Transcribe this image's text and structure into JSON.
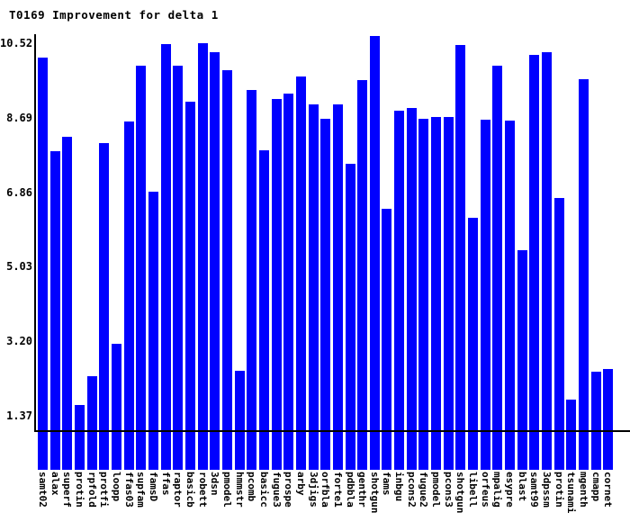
{
  "title": "T0169 Improvement for delta 1",
  "colors": {
    "bar": "#0000ff",
    "axis": "#000000",
    "text": "#000000",
    "background": "#ffffff"
  },
  "chart_data": {
    "type": "bar",
    "title": "T0169 Improvement for delta 1",
    "xlabel": "",
    "ylabel": "",
    "grid": false,
    "legend": false,
    "x_tick_rotation_deg": 90,
    "ylim": [
      0,
      10.75
    ],
    "yticks": [
      10.52,
      8.69,
      6.86,
      5.03,
      3.2,
      1.37
    ],
    "ytick_labels": [
      "10.52",
      "8.69",
      "6.86",
      "5.03",
      "3.20",
      "1.37"
    ],
    "baseline_value": 1.0,
    "categories": [
      "samt02",
      "alax",
      "superf",
      "protin",
      "rpfold",
      "protfi",
      "loopp",
      "ffas03",
      "supfam",
      "famsD",
      "ffas",
      "raptor",
      "basicb",
      "robett",
      "3dsn",
      "pmodel",
      "hmmstr",
      "pcomb",
      "basicc",
      "fugue3",
      "prospe",
      "arby",
      "3djigs",
      "orfbla",
      "forte1",
      "pdbbla",
      "genthr",
      "shotgun",
      "fams",
      "inbgu",
      "pcons2",
      "fugue2",
      "pmodel",
      "pcons3",
      "shotgun",
      "libell",
      "orfeus",
      "mpalig",
      "esypre",
      "blast",
      "samt99",
      "3dpssm",
      "protin",
      "tsunami",
      "mgenth",
      "cmapp",
      "cornet"
    ],
    "values": [
      10.17,
      7.87,
      8.22,
      1.64,
      2.34,
      8.07,
      3.14,
      8.6,
      9.97,
      6.87,
      10.5,
      9.97,
      9.08,
      10.52,
      10.3,
      9.86,
      2.48,
      9.37,
      7.89,
      9.15,
      9.28,
      9.7,
      9.02,
      8.66,
      9.02,
      7.56,
      9.61,
      10.7,
      6.45,
      8.86,
      8.93,
      8.66,
      8.71,
      8.71,
      10.48,
      6.23,
      8.64,
      9.97,
      8.62,
      5.44,
      10.23,
      10.3,
      6.72,
      1.77,
      9.64,
      2.45,
      2.52
    ]
  }
}
